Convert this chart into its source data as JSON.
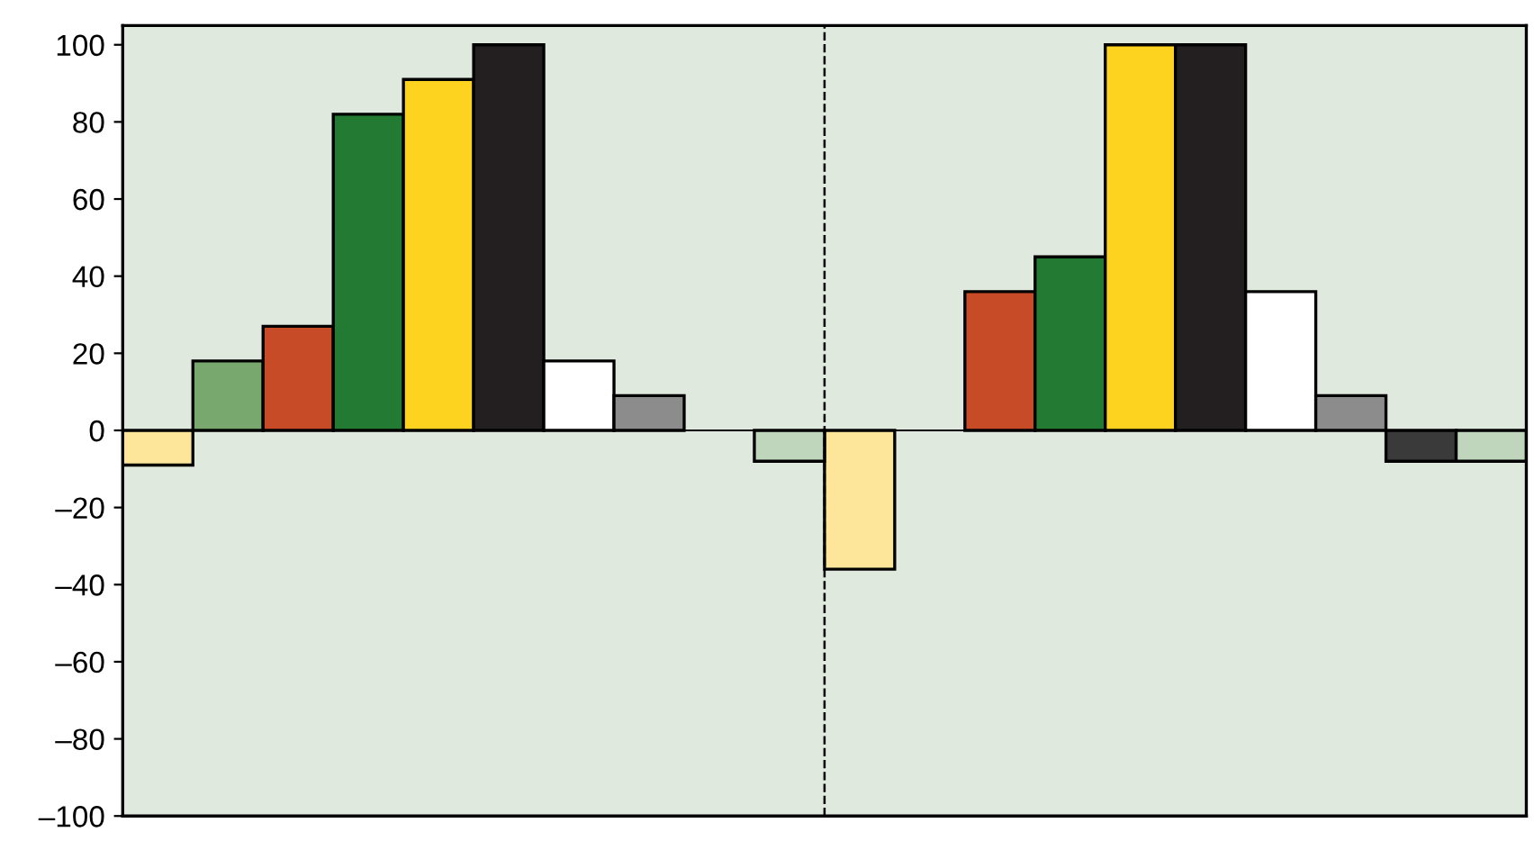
{
  "chart_data": {
    "type": "bar",
    "categories": [
      null,
      null
    ],
    "series": [
      {
        "color": "#fde59a",
        "values": [
          -9,
          -36
        ]
      },
      {
        "color": "#79a86f",
        "values": [
          18,
          null
        ]
      },
      {
        "color": "#c84b27",
        "values": [
          27,
          36
        ]
      },
      {
        "color": "#237a32",
        "values": [
          82,
          45
        ]
      },
      {
        "color": "#fdd320",
        "values": [
          91,
          100
        ]
      },
      {
        "color": "#231f20",
        "values": [
          100,
          100
        ]
      },
      {
        "color": "#ffffff",
        "values": [
          18,
          36
        ]
      },
      {
        "color": "#8c8c8c",
        "values": [
          9,
          9
        ]
      },
      {
        "color": "#3a3a3a",
        "values": [
          null,
          -8
        ]
      },
      {
        "color": "#bfd5bc",
        "values": [
          -8,
          -8
        ]
      }
    ],
    "ylim": [
      -100,
      105
    ],
    "yticks": [
      {
        "value": -100,
        "label": "–100"
      },
      {
        "value": -80,
        "label": "–80"
      },
      {
        "value": -60,
        "label": "–60"
      },
      {
        "value": -40,
        "label": "–40"
      },
      {
        "value": -20,
        "label": "–20"
      },
      0,
      20,
      40,
      60,
      80,
      100
    ],
    "grid": false,
    "legend": false
  }
}
